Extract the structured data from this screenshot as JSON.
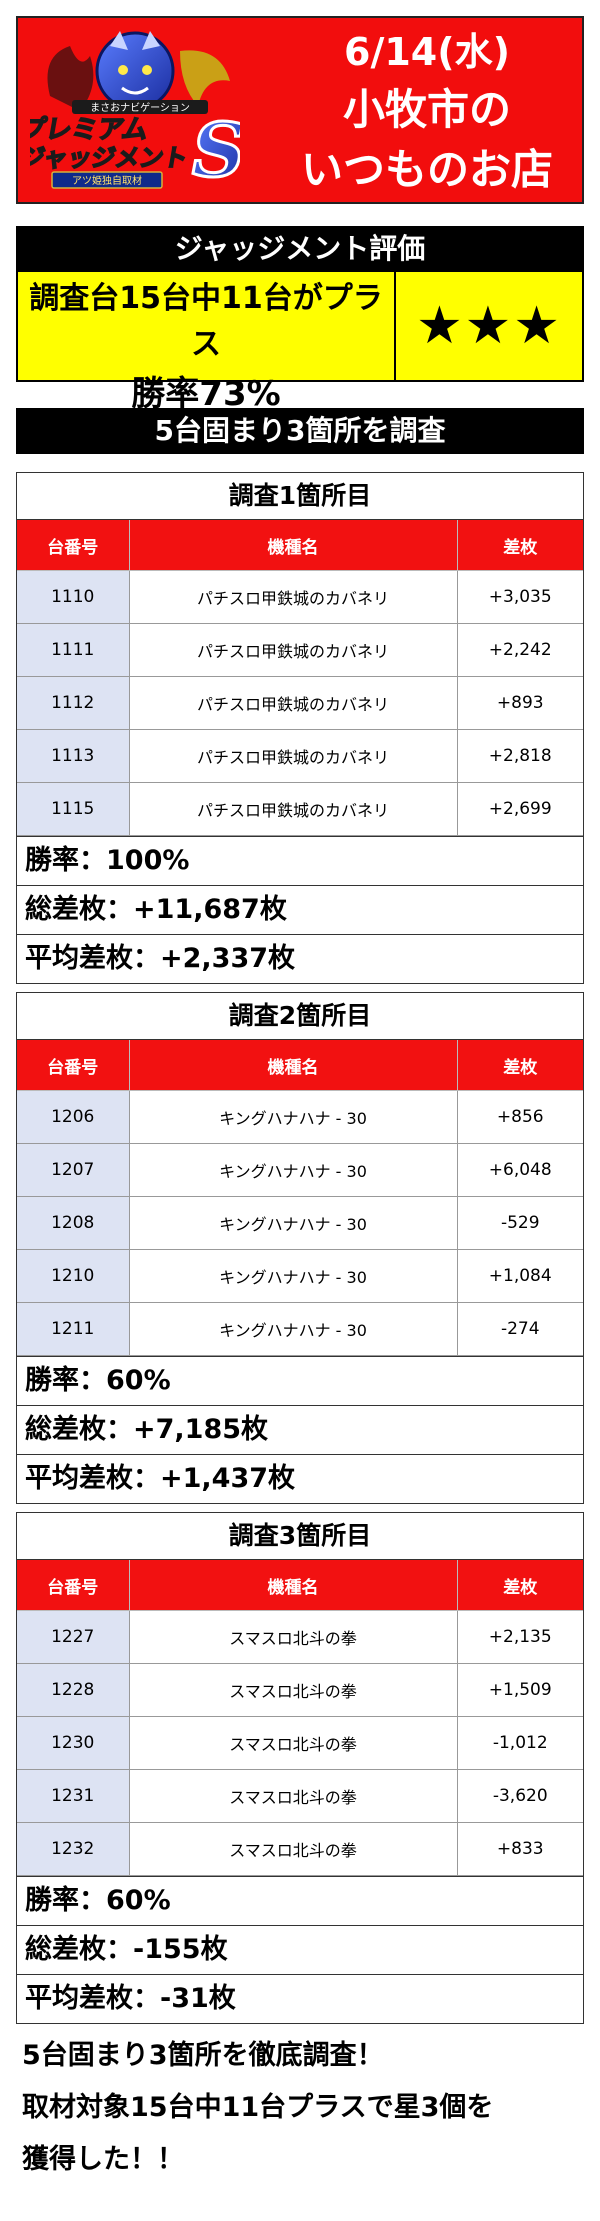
{
  "banner": {
    "date": "6/14(水)",
    "line1": "小牧市の",
    "line2": "いつものお店",
    "logo": {
      "tagline": "まさおナビゲーション",
      "word1": "プレミアム",
      "word2": "ジャッジメント",
      "letter": "S",
      "ribbon": "アツ姫独自取材"
    }
  },
  "evaluation": {
    "heading": "ジャッジメント評価",
    "line1": "調査台15台中11台がプラス",
    "line2": "勝率73%",
    "stars": "★★★"
  },
  "section_heading": "5台固まり3箇所を調査",
  "columns": {
    "num": "台番号",
    "model": "機種名",
    "diff": "差枚"
  },
  "surveys": [
    {
      "title": "調査1箇所目",
      "rows": [
        {
          "num": "1110",
          "model": "パチスロ甲鉄城のカバネリ",
          "diff": "+3,035"
        },
        {
          "num": "1111",
          "model": "パチスロ甲鉄城のカバネリ",
          "diff": "+2,242"
        },
        {
          "num": "1112",
          "model": "パチスロ甲鉄城のカバネリ",
          "diff": "+893"
        },
        {
          "num": "1113",
          "model": "パチスロ甲鉄城のカバネリ",
          "diff": "+2,818"
        },
        {
          "num": "1115",
          "model": "パチスロ甲鉄城のカバネリ",
          "diff": "+2,699"
        }
      ],
      "win_rate": "勝率：100%",
      "total": "総差枚：+11,687枚",
      "average": "平均差枚：+2,337枚"
    },
    {
      "title": "調査2箇所目",
      "rows": [
        {
          "num": "1206",
          "model": "キングハナハナ - 30",
          "diff": "+856"
        },
        {
          "num": "1207",
          "model": "キングハナハナ - 30",
          "diff": "+6,048"
        },
        {
          "num": "1208",
          "model": "キングハナハナ - 30",
          "diff": "-529"
        },
        {
          "num": "1210",
          "model": "キングハナハナ - 30",
          "diff": "+1,084"
        },
        {
          "num": "1211",
          "model": "キングハナハナ - 30",
          "diff": "-274"
        }
      ],
      "win_rate": "勝率：60%",
      "total": "総差枚：+7,185枚",
      "average": "平均差枚：+1,437枚"
    },
    {
      "title": "調査3箇所目",
      "rows": [
        {
          "num": "1227",
          "model": "スマスロ北斗の拳",
          "diff": "+2,135"
        },
        {
          "num": "1228",
          "model": "スマスロ北斗の拳",
          "diff": "+1,509"
        },
        {
          "num": "1230",
          "model": "スマスロ北斗の拳",
          "diff": "-1,012"
        },
        {
          "num": "1231",
          "model": "スマスロ北斗の拳",
          "diff": "-3,620"
        },
        {
          "num": "1232",
          "model": "スマスロ北斗の拳",
          "diff": "+833"
        }
      ],
      "win_rate": "勝率：60%",
      "total": "総差枚：-155枚",
      "average": "平均差枚：-31枚"
    }
  ],
  "closing": [
    "5台固まり3箇所を徹底調査！",
    "取材対象15台中11台プラスで星3個を",
    "獲得した！！"
  ]
}
